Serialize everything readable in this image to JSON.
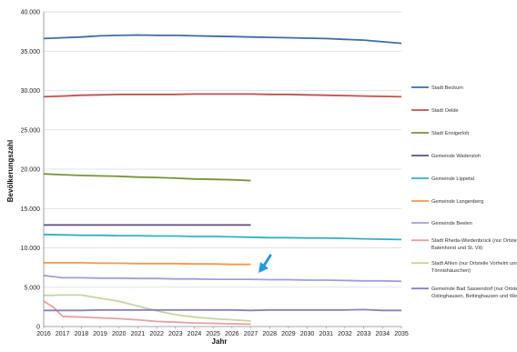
{
  "chart_data": {
    "type": "line",
    "xlabel": "Jahr",
    "ylabel": "Bevölkerungszahl",
    "xlim": [
      2016,
      2035
    ],
    "ylim": [
      0,
      40000
    ],
    "x_ticks": [
      "2016",
      "2017",
      "2018",
      "2019",
      "2020",
      "2021",
      "2022",
      "2023",
      "2024",
      "2025",
      "2026",
      "2027",
      "2028",
      "2029",
      "2030",
      "2031",
      "2032",
      "2033",
      "2034",
      "2035"
    ],
    "y_ticks": [
      "0",
      "5.000",
      "10.000",
      "15.000",
      "20.000",
      "25.000",
      "30.000",
      "35.000",
      "40.000"
    ],
    "grid": true,
    "legend_position": "right",
    "annotation": {
      "type": "arrow",
      "color": "#1f9ae0"
    },
    "series": [
      {
        "name": "Stadt Beckum",
        "color": "#3a6ea5",
        "x": [
          2016,
          2017,
          2018,
          2019,
          2020,
          2021,
          2022,
          2023,
          2024,
          2025,
          2026,
          2027,
          2028,
          2029,
          2030,
          2031,
          2032,
          2033,
          2034,
          2035
        ],
        "y": [
          36600,
          36700,
          36800,
          36950,
          37000,
          37050,
          37000,
          37000,
          36950,
          36900,
          36850,
          36800,
          36750,
          36700,
          36650,
          36600,
          36500,
          36400,
          36200,
          36000
        ]
      },
      {
        "name": "Stadt Oelde",
        "color": "#c0504d",
        "x": [
          2016,
          2017,
          2018,
          2019,
          2020,
          2021,
          2022,
          2023,
          2024,
          2025,
          2026,
          2027,
          2028,
          2029,
          2030,
          2031,
          2032,
          2033,
          2034,
          2035
        ],
        "y": [
          29200,
          29300,
          29400,
          29450,
          29500,
          29500,
          29500,
          29500,
          29550,
          29550,
          29550,
          29550,
          29500,
          29500,
          29450,
          29400,
          29350,
          29300,
          29250,
          29200
        ]
      },
      {
        "name": "Stadt Ennigerloh",
        "color": "#77933c",
        "x": [
          2016,
          2017,
          2018,
          2019,
          2020,
          2021,
          2022,
          2023,
          2024,
          2025,
          2026,
          2027
        ],
        "y": [
          19400,
          19300,
          19200,
          19150,
          19100,
          19000,
          18950,
          18850,
          18750,
          18700,
          18650,
          18550
        ]
      },
      {
        "name": "Gemeinde Wadersloh",
        "color": "#604a7b",
        "x": [
          2016,
          2017,
          2018,
          2019,
          2020,
          2021,
          2022,
          2023,
          2024,
          2025,
          2026,
          2027
        ],
        "y": [
          12900,
          12900,
          12900,
          12900,
          12900,
          12900,
          12900,
          12900,
          12900,
          12900,
          12900,
          12900
        ]
      },
      {
        "name": "Gemeinde Lippetal",
        "color": "#31b0c8",
        "x": [
          2016,
          2017,
          2018,
          2019,
          2020,
          2021,
          2022,
          2023,
          2024,
          2025,
          2026,
          2027,
          2028,
          2029,
          2030,
          2031,
          2032,
          2033,
          2034,
          2035
        ],
        "y": [
          11700,
          11650,
          11600,
          11600,
          11550,
          11550,
          11500,
          11500,
          11450,
          11450,
          11400,
          11350,
          11300,
          11300,
          11250,
          11250,
          11200,
          11150,
          11100,
          11050
        ]
      },
      {
        "name": "Gemeinde Langenberg",
        "color": "#f79646",
        "x": [
          2016,
          2017,
          2018,
          2019,
          2020,
          2021,
          2022,
          2023,
          2024,
          2025,
          2026,
          2027
        ],
        "y": [
          8100,
          8100,
          8100,
          8050,
          8050,
          8000,
          8000,
          8000,
          7950,
          7950,
          7900,
          7900
        ]
      },
      {
        "name": "Gemeinde Beelen",
        "color": "#9e9ee0",
        "x": [
          2016,
          2017,
          2018,
          2019,
          2020,
          2021,
          2022,
          2023,
          2024,
          2025,
          2026,
          2027,
          2028,
          2029,
          2030,
          2031,
          2032,
          2033,
          2034,
          2035
        ],
        "y": [
          6500,
          6200,
          6200,
          6150,
          6150,
          6100,
          6100,
          6050,
          6050,
          6000,
          6000,
          6000,
          5950,
          5950,
          5900,
          5900,
          5850,
          5800,
          5800,
          5750
        ]
      },
      {
        "name": "Stadt Rheda-Wiedenbrück (nur Ortsteile Batenhorst und St. Vit)",
        "color": "#e6a0a0",
        "x": [
          2016,
          2016.5,
          2017,
          2018,
          2019,
          2020,
          2021,
          2022,
          2023,
          2024,
          2025,
          2026,
          2027
        ],
        "y": [
          3200,
          2500,
          1300,
          1200,
          1100,
          1000,
          850,
          650,
          550,
          450,
          400,
          350,
          300
        ]
      },
      {
        "name": "Stadt Ahlen (nur Ortsteile Vorhelm und Tönnishäuschen)",
        "color": "#c4d79b",
        "x": [
          2016,
          2017,
          2018,
          2019,
          2020,
          2021,
          2022,
          2023,
          2024,
          2025,
          2026,
          2027
        ],
        "y": [
          3950,
          4000,
          4000,
          3600,
          3200,
          2600,
          2000,
          1500,
          1200,
          1000,
          850,
          700
        ]
      },
      {
        "name": "Gemeinde Bad Sassendorf (nur Ortsteile Ostinghausen, Bettinghausen und Weslarn)",
        "color": "#8c7fc0",
        "x": [
          2016,
          2017,
          2018,
          2019,
          2020,
          2021,
          2022,
          2023,
          2024,
          2025,
          2026,
          2027,
          2028,
          2029,
          2030,
          2031,
          2032,
          2033,
          2034,
          2035
        ],
        "y": [
          2050,
          2050,
          2050,
          2100,
          2100,
          2100,
          2100,
          2100,
          2100,
          2100,
          2100,
          2050,
          2100,
          2100,
          2100,
          2100,
          2100,
          2150,
          2050,
          2050
        ]
      }
    ]
  }
}
